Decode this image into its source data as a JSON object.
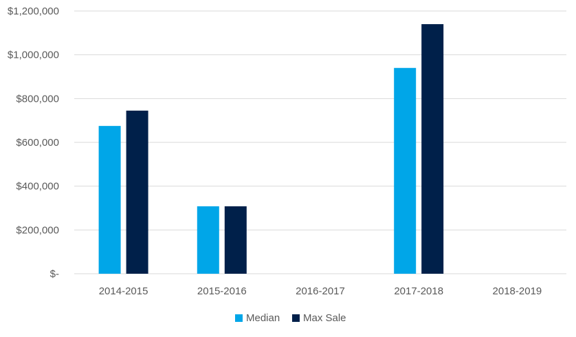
{
  "chart_data": {
    "type": "bar",
    "categories": [
      "2014-2015",
      "2015-2016",
      "2016-2017",
      "2017-2018",
      "2018-2019"
    ],
    "series": [
      {
        "name": "Median",
        "color": "#00a6e8",
        "values": [
          675000,
          308000,
          0,
          940000,
          0
        ]
      },
      {
        "name": "Max Sale",
        "color": "#00204a",
        "values": [
          745000,
          308000,
          0,
          1140000,
          0
        ]
      }
    ],
    "y_ticks": [
      "$-",
      "$200,000",
      "$400,000",
      "$600,000",
      "$800,000",
      "$1,000,000",
      "$1,200,000"
    ],
    "ylim": [
      0,
      1200000
    ],
    "grid": true,
    "legend": "bottom-center",
    "gridline_color": "#d9d9d9",
    "title": "",
    "xlabel": "",
    "ylabel": ""
  }
}
